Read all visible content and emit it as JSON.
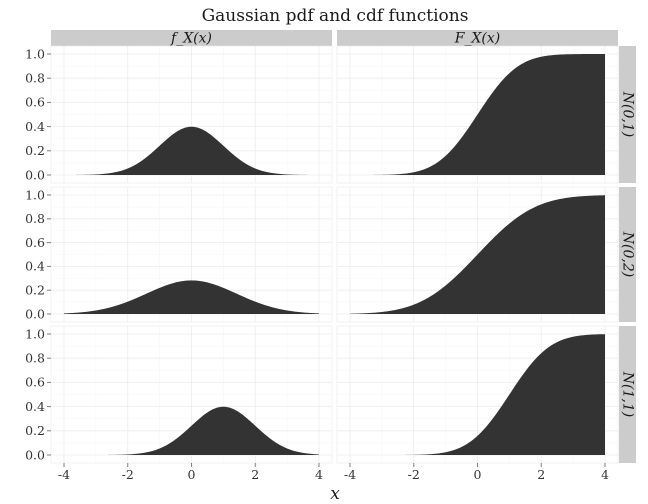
{
  "chart_data": {
    "type": "area",
    "title": "Gaussian pdf and cdf functions",
    "xlabel": "x",
    "ylabel": "",
    "xlim": [
      -4,
      4
    ],
    "ylim": [
      0,
      1
    ],
    "x_ticks": [
      "-4",
      "-2",
      "0",
      "2",
      "4"
    ],
    "y_ticks": [
      "0.0",
      "0.2",
      "0.4",
      "0.6",
      "0.8",
      "1.0"
    ],
    "column_strips": [
      "f_X(x)",
      "F_X(x)"
    ],
    "row_strips": [
      "N(0,1)",
      "N(0,2)",
      "N(1,1)"
    ],
    "fill_color": "#333333",
    "grid": true,
    "panels": [
      {
        "row": "N(0,1)",
        "col": "f_X(x)",
        "mu": 0,
        "variance": 1,
        "x": [
          -4,
          -3,
          -2,
          -1,
          0,
          1,
          2,
          3,
          4
        ],
        "y": [
          0.0001,
          0.0044,
          0.054,
          0.242,
          0.399,
          0.242,
          0.054,
          0.0044,
          0.0001
        ]
      },
      {
        "row": "N(0,1)",
        "col": "F_X(x)",
        "mu": 0,
        "variance": 1,
        "x": [
          -4,
          -3,
          -2,
          -1,
          0,
          1,
          2,
          3,
          4
        ],
        "y": [
          3e-05,
          0.0013,
          0.023,
          0.159,
          0.5,
          0.841,
          0.977,
          0.9987,
          1.0
        ]
      },
      {
        "row": "N(0,2)",
        "col": "f_X(x)",
        "mu": 0,
        "variance": 2,
        "x": [
          -4,
          -3,
          -2,
          -1,
          0,
          1,
          2,
          3,
          4
        ],
        "y": [
          0.0052,
          0.0297,
          0.1038,
          0.2197,
          0.2821,
          0.2197,
          0.1038,
          0.0297,
          0.0052
        ]
      },
      {
        "row": "N(0,2)",
        "col": "F_X(x)",
        "mu": 0,
        "variance": 2,
        "x": [
          -4,
          -3,
          -2,
          -1,
          0,
          1,
          2,
          3,
          4
        ],
        "y": [
          0.0023,
          0.0169,
          0.0786,
          0.2398,
          0.5,
          0.7602,
          0.9214,
          0.9831,
          0.9977
        ]
      },
      {
        "row": "N(1,1)",
        "col": "f_X(x)",
        "mu": 1,
        "variance": 1,
        "x": [
          -4,
          -3,
          -2,
          -1,
          0,
          1,
          2,
          3,
          4
        ],
        "y": [
          0.0,
          0.0001,
          0.0044,
          0.054,
          0.242,
          0.399,
          0.242,
          0.054,
          0.0044
        ]
      },
      {
        "row": "N(1,1)",
        "col": "F_X(x)",
        "mu": 1,
        "variance": 1,
        "x": [
          -4,
          -3,
          -2,
          -1,
          0,
          1,
          2,
          3,
          4
        ],
        "y": [
          0.0,
          3e-05,
          0.0013,
          0.023,
          0.159,
          0.5,
          0.841,
          0.977,
          0.9987
        ]
      }
    ]
  }
}
